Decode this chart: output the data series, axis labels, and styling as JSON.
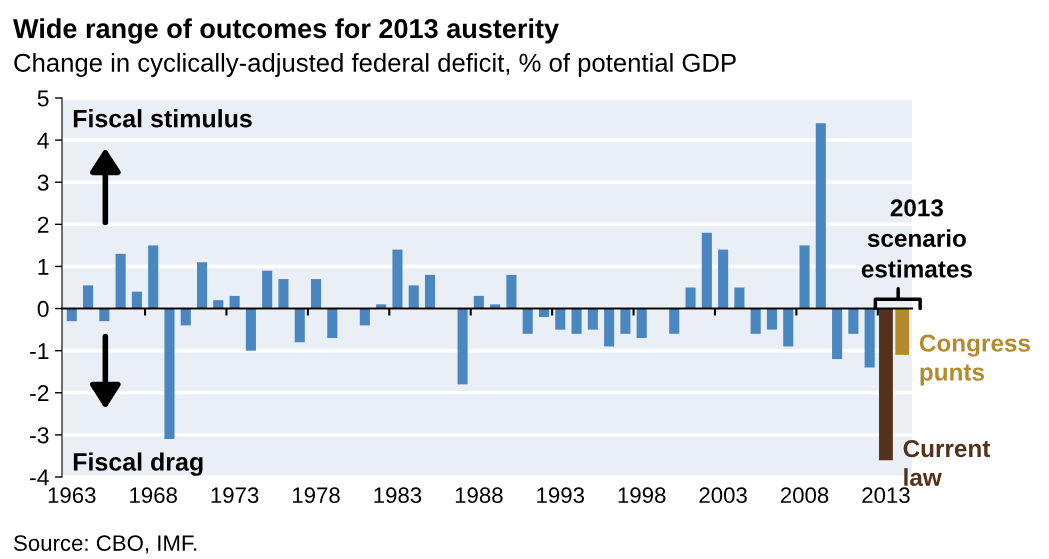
{
  "chart_data": {
    "type": "bar",
    "title": "Wide range of outcomes for 2013 austerity",
    "subtitle": "Change in cyclically-adjusted federal deficit, % of potential GDP",
    "categories": [
      "1963",
      null,
      null,
      null,
      null,
      "1968",
      null,
      null,
      null,
      null,
      "1973",
      null,
      null,
      null,
      null,
      "1978",
      null,
      null,
      null,
      null,
      "1983",
      null,
      null,
      null,
      null,
      "1988",
      null,
      null,
      null,
      null,
      "1993",
      null,
      null,
      null,
      null,
      "1998",
      null,
      null,
      null,
      null,
      "2003",
      null,
      null,
      null,
      null,
      "2008",
      null,
      null,
      null,
      null,
      "2013",
      null
    ],
    "series": [
      {
        "color": "#4a86bf",
        "values": [
          -0.3,
          0.55,
          -0.3,
          1.3,
          0.4,
          1.5,
          -3.1,
          -0.4,
          1.1,
          0.2,
          0.3,
          -1.0,
          0.9,
          0.7,
          -0.8,
          0.7,
          -0.7,
          0,
          -0.4,
          0.1,
          1.4,
          0.55,
          0.8,
          0,
          -1.8,
          0.3,
          0.1,
          0.8,
          -0.6,
          -0.2,
          -0.5,
          -0.6,
          -0.5,
          -0.9,
          -0.6,
          -0.7,
          0,
          -0.6,
          0.5,
          1.8,
          1.4,
          0.5,
          -0.6,
          -0.5,
          -0.9,
          1.5,
          4.4,
          -1.2,
          -0.6,
          -1.4,
          null,
          null
        ]
      },
      {
        "name": "Current\nlaw",
        "color": "#55301a",
        "values": [
          null,
          null,
          null,
          null,
          null,
          null,
          null,
          null,
          null,
          null,
          null,
          null,
          null,
          null,
          null,
          null,
          null,
          null,
          null,
          null,
          null,
          null,
          null,
          null,
          null,
          null,
          null,
          null,
          null,
          null,
          null,
          null,
          null,
          null,
          null,
          null,
          null,
          null,
          null,
          null,
          null,
          null,
          null,
          null,
          null,
          null,
          null,
          null,
          null,
          null,
          -3.6,
          null
        ]
      },
      {
        "name": "Congress\npunts",
        "color": "#b38b2c",
        "values": [
          null,
          null,
          null,
          null,
          null,
          null,
          null,
          null,
          null,
          null,
          null,
          null,
          null,
          null,
          null,
          null,
          null,
          null,
          null,
          null,
          null,
          null,
          null,
          null,
          null,
          null,
          null,
          null,
          null,
          null,
          null,
          null,
          null,
          null,
          null,
          null,
          null,
          null,
          null,
          null,
          null,
          null,
          null,
          null,
          null,
          null,
          null,
          null,
          null,
          null,
          null,
          -1.1
        ]
      }
    ],
    "ylim": [
      -4,
      5
    ],
    "yticks": [
      -4,
      -3,
      -2,
      -1,
      0,
      1,
      2,
      3,
      4,
      5
    ],
    "grid": "y",
    "annotations": [
      "Fiscal stimulus",
      "Fiscal drag",
      {
        "text": "2013\nscenario\nestimates",
        "x": "2013",
        "y": 0
      },
      "Source: CBO, IMF."
    ]
  }
}
